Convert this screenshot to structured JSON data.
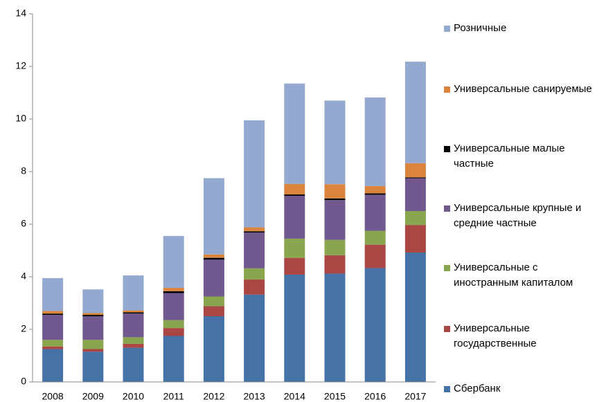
{
  "chart_data": {
    "type": "stacked_bar",
    "categories": [
      "2008",
      "2009",
      "2010",
      "2011",
      "2012",
      "2013",
      "2014",
      "2015",
      "2016",
      "2017"
    ],
    "series": [
      {
        "name": "Сбербанк",
        "color": "#4572a7",
        "values": [
          1.25,
          1.15,
          1.3,
          1.75,
          2.5,
          3.32,
          4.08,
          4.12,
          4.33,
          4.92
        ]
      },
      {
        "name": "Универсальные государственные",
        "color": "#aa4643",
        "values": [
          0.1,
          0.1,
          0.15,
          0.3,
          0.38,
          0.58,
          0.64,
          0.7,
          0.89,
          1.05
        ]
      },
      {
        "name": "Универсальные с иностранным капиталом",
        "color": "#89a54e",
        "values": [
          0.25,
          0.35,
          0.25,
          0.3,
          0.37,
          0.42,
          0.73,
          0.58,
          0.53,
          0.53
        ]
      },
      {
        "name": "Универсальные крупные и средние частные",
        "color": "#71588f",
        "values": [
          0.95,
          0.9,
          0.9,
          1.03,
          1.4,
          1.36,
          1.63,
          1.52,
          1.37,
          1.25
        ]
      },
      {
        "name": "Универсальные малые частные",
        "color": "#000000",
        "values": [
          0.05,
          0.05,
          0.05,
          0.07,
          0.07,
          0.05,
          0.05,
          0.06,
          0.05,
          0.03
        ]
      },
      {
        "name": "Универсальные санируемые",
        "color": "#db843d",
        "values": [
          0.1,
          0.07,
          0.07,
          0.13,
          0.13,
          0.15,
          0.4,
          0.54,
          0.28,
          0.54
        ]
      },
      {
        "name": "Розничные",
        "color": "#93a9cf",
        "values": [
          1.25,
          0.9,
          1.33,
          1.97,
          2.9,
          4.07,
          3.82,
          3.18,
          3.37,
          3.86
        ]
      }
    ],
    "ylim": [
      0,
      14
    ],
    "yticks": [
      0,
      2,
      4,
      6,
      8,
      10,
      12,
      14
    ],
    "legend": "right"
  }
}
